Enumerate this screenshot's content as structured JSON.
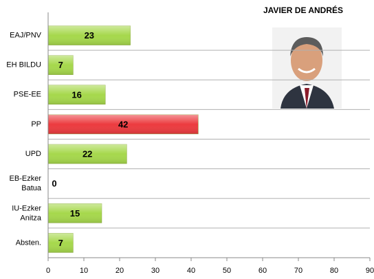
{
  "chart_data": {
    "type": "bar",
    "orientation": "horizontal",
    "title": "JAVIER DE ANDRÉS",
    "categories": [
      "EAJ/PNV",
      "EH BILDU",
      "PSE-EE",
      "PP",
      "UPD",
      "EB-Ezker\nBatua",
      "IU-Ezker\nAnitza",
      "Absten."
    ],
    "values": [
      23,
      7,
      16,
      42,
      22,
      0,
      15,
      7
    ],
    "colors": [
      "#a6d84c",
      "#a6d84c",
      "#a6d84c",
      "#ec3b3f",
      "#a6d84c",
      "#a6d84c",
      "#a6d84c",
      "#a6d84c"
    ],
    "xlim": [
      0,
      90
    ],
    "xticks": [
      0,
      10,
      20,
      30,
      40,
      50,
      60,
      70,
      80,
      90
    ]
  }
}
